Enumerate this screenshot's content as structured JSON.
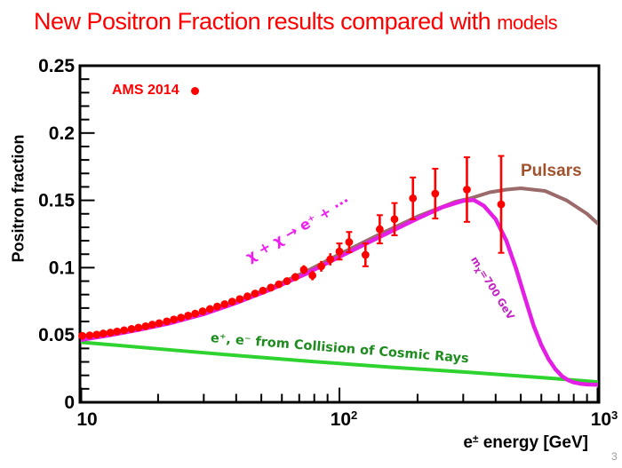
{
  "title": {
    "main": "New Positron Fraction results compared with ",
    "small": "models"
  },
  "page_number": "3",
  "legend": {
    "ams": "AMS 2014"
  },
  "annotations": {
    "pulsars": "Pulsars",
    "dm_reaction": "χ + χ → e⁺ + ···",
    "dm_mass": {
      "pre": "m",
      "sub": "χ",
      "post": "=700 GeV"
    },
    "cosmic_rays": "e⁺, e⁻ from Collision of Cosmic Rays"
  },
  "axes": {
    "y_title": "Positron fraction",
    "x_title": {
      "pre": "e",
      "sup": "±",
      "post": " energy [GeV]"
    },
    "x_ticks": [
      {
        "base": "10",
        "exp": ""
      },
      {
        "base": "10",
        "exp": "2"
      },
      {
        "base": "10",
        "exp": "3"
      }
    ]
  },
  "colors": {
    "title": "#ff0000",
    "data": "#ff0000",
    "pulsars_curve": "#9b6a6a",
    "pulsars_text": "#a0522d",
    "dark_matter_curve": "#e41ee4",
    "cosmic_ray_curve": "#2fd32f",
    "cosmic_ray_text": "#1f8c1f",
    "axis": "#000000"
  },
  "chart_data": {
    "type": "scatter",
    "title": "New Positron Fraction results compared with models",
    "xlabel": "e± energy [GeV]",
    "ylabel": "Positron fraction",
    "x_scale": "log",
    "xlim": [
      10,
      1000
    ],
    "ylim": [
      0,
      0.25
    ],
    "grid": false,
    "x_major_ticks": [
      10,
      100,
      1000
    ],
    "y_major_ticks": [
      0,
      0.05,
      0.1,
      0.15,
      0.2,
      0.25
    ],
    "y_tick_labels": [
      "0",
      "0.05",
      "0.1",
      "0.15",
      "0.2",
      "0.25"
    ],
    "series": [
      {
        "name": "AMS 2014",
        "type": "scatter",
        "color": "#ff0000",
        "points": [
          [
            10.2,
            0.0494,
            0.0006
          ],
          [
            10.9,
            0.0497,
            0.0006
          ],
          [
            11.6,
            0.0503,
            0.0006
          ],
          [
            12.3,
            0.0511,
            0.0006
          ],
          [
            13.1,
            0.0518,
            0.0006
          ],
          [
            13.9,
            0.0526,
            0.0007
          ],
          [
            14.8,
            0.0535,
            0.0007
          ],
          [
            15.8,
            0.0545,
            0.0007
          ],
          [
            16.8,
            0.0555,
            0.0008
          ],
          [
            17.9,
            0.0565,
            0.0008
          ],
          [
            19.0,
            0.0577,
            0.0008
          ],
          [
            20.2,
            0.0588,
            0.0009
          ],
          [
            21.6,
            0.0601,
            0.0009
          ],
          [
            23.0,
            0.0615,
            0.001
          ],
          [
            24.5,
            0.0629,
            0.001
          ],
          [
            26.1,
            0.0644,
            0.0011
          ],
          [
            27.8,
            0.0659,
            0.0011
          ],
          [
            29.7,
            0.0676,
            0.0012
          ],
          [
            31.7,
            0.0693,
            0.0013
          ],
          [
            33.8,
            0.0711,
            0.0013
          ],
          [
            36.1,
            0.0729,
            0.0014
          ],
          [
            38.6,
            0.0748,
            0.0015
          ],
          [
            41.3,
            0.0767,
            0.0016
          ],
          [
            44.2,
            0.0787,
            0.0018
          ],
          [
            47.3,
            0.0808,
            0.0019
          ],
          [
            50.7,
            0.0829,
            0.0021
          ],
          [
            54.4,
            0.0852,
            0.0023
          ],
          [
            58.4,
            0.0876,
            0.0025
          ],
          [
            62.8,
            0.09,
            0.0027
          ],
          [
            67.6,
            0.093,
            0.003
          ],
          [
            72.9,
            0.0985,
            0.0033
          ],
          [
            78.7,
            0.0942,
            0.0036
          ],
          [
            85.1,
            0.101,
            0.004
          ],
          [
            92.2,
            0.1062,
            0.0045
          ],
          [
            100.0,
            0.112,
            0.006
          ],
          [
            109.0,
            0.119,
            0.0075
          ],
          [
            126.0,
            0.1095,
            0.0085
          ],
          [
            143.0,
            0.1285,
            0.0105
          ],
          [
            163.0,
            0.136,
            0.012
          ],
          [
            192.0,
            0.1515,
            0.0155
          ],
          [
            234.0,
            0.155,
            0.0185
          ],
          [
            310.0,
            0.158,
            0.024
          ],
          [
            420.0,
            0.147,
            0.036
          ]
        ]
      },
      {
        "name": "e+, e- from Collision of Cosmic Rays",
        "type": "line",
        "color": "#2fd32f",
        "width": 4,
        "points": [
          [
            10,
            0.0447
          ],
          [
            20,
            0.0397
          ],
          [
            40,
            0.0348
          ],
          [
            80,
            0.0302
          ],
          [
            160,
            0.026
          ],
          [
            320,
            0.0222
          ],
          [
            640,
            0.018
          ],
          [
            1000,
            0.015
          ]
        ]
      },
      {
        "name": "Pulsars",
        "type": "line",
        "color": "#9b6a6a",
        "width": 4,
        "points": [
          [
            10,
            0.047
          ],
          [
            13,
            0.0505
          ],
          [
            17,
            0.0548
          ],
          [
            22,
            0.0595
          ],
          [
            30,
            0.0665
          ],
          [
            40,
            0.075
          ],
          [
            55,
            0.0855
          ],
          [
            75,
            0.0975
          ],
          [
            100,
            0.11
          ],
          [
            140,
            0.124
          ],
          [
            200,
            0.138
          ],
          [
            280,
            0.149
          ],
          [
            320,
            0.1515
          ],
          [
            380,
            0.156
          ],
          [
            440,
            0.158
          ],
          [
            500,
            0.159
          ],
          [
            620,
            0.157
          ],
          [
            750,
            0.15
          ],
          [
            900,
            0.14
          ],
          [
            1000,
            0.132
          ]
        ]
      },
      {
        "name": "χ + χ → e+ + ··· (mχ = 700 GeV)",
        "type": "line",
        "color": "#e41ee4",
        "width": 4.5,
        "points": [
          [
            10,
            0.0462
          ],
          [
            13,
            0.0498
          ],
          [
            17,
            0.054
          ],
          [
            22,
            0.0585
          ],
          [
            30,
            0.0655
          ],
          [
            40,
            0.0738
          ],
          [
            55,
            0.0842
          ],
          [
            75,
            0.0958
          ],
          [
            100,
            0.108
          ],
          [
            140,
            0.122
          ],
          [
            200,
            0.1365
          ],
          [
            250,
            0.145
          ],
          [
            300,
            0.1497
          ],
          [
            330,
            0.1502
          ],
          [
            360,
            0.146
          ],
          [
            400,
            0.136
          ],
          [
            440,
            0.12
          ],
          [
            480,
            0.099
          ],
          [
            520,
            0.077
          ],
          [
            560,
            0.057
          ],
          [
            600,
            0.0425
          ],
          [
            640,
            0.032
          ],
          [
            680,
            0.0245
          ],
          [
            720,
            0.0195
          ],
          [
            760,
            0.0165
          ],
          [
            800,
            0.0148
          ],
          [
            850,
            0.0138
          ],
          [
            900,
            0.0133
          ],
          [
            1000,
            0.013
          ]
        ]
      }
    ]
  }
}
